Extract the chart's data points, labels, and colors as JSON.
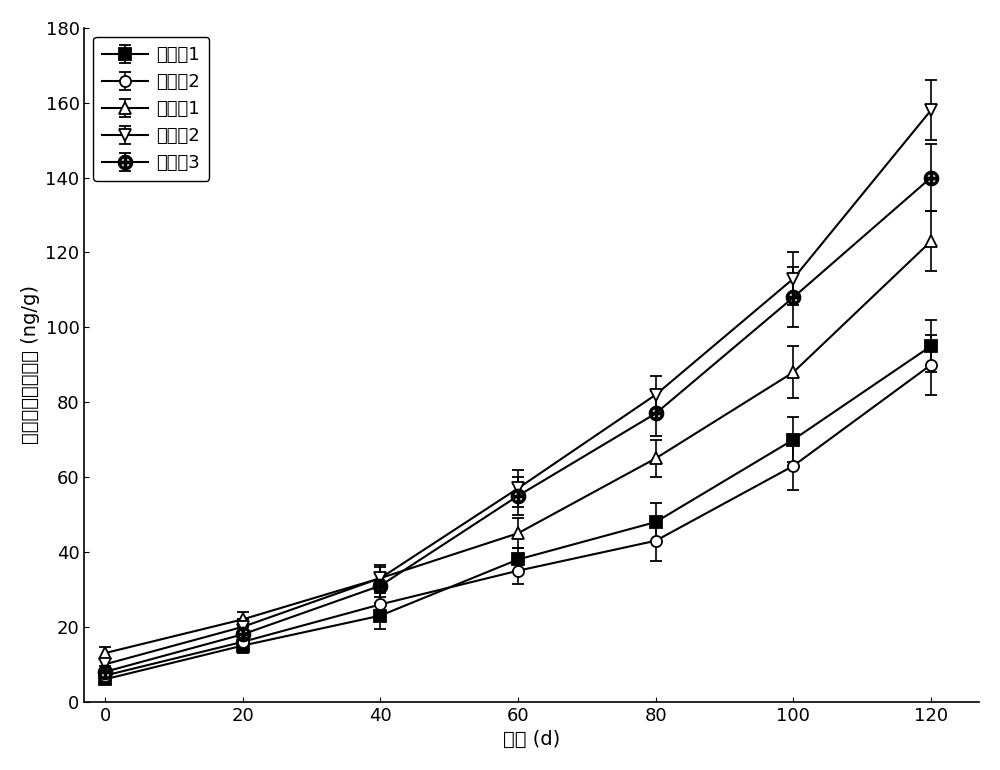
{
  "x": [
    0,
    20,
    40,
    60,
    80,
    100,
    120
  ],
  "series": [
    {
      "label": "实施处1",
      "y": [
        6,
        15,
        23,
        38,
        48,
        70,
        95
      ],
      "yerr": [
        1.0,
        2.0,
        3.5,
        3.0,
        5.0,
        6.0,
        7.0
      ],
      "marker": "s",
      "markerfacecolor": "black",
      "markeredgecolor": "black",
      "color": "black",
      "markersize": 8
    },
    {
      "label": "实施处2",
      "y": [
        7,
        16,
        26,
        35,
        43,
        63,
        90
      ],
      "yerr": [
        1.0,
        2.0,
        3.0,
        3.5,
        5.5,
        6.5,
        8.0
      ],
      "marker": "o",
      "markerfacecolor": "white",
      "markeredgecolor": "black",
      "color": "black",
      "markersize": 8
    },
    {
      "label": "对比处1",
      "y": [
        13,
        22,
        33,
        45,
        65,
        88,
        123
      ],
      "yerr": [
        1.5,
        2.0,
        3.5,
        4.0,
        5.0,
        7.0,
        8.0
      ],
      "marker": "^",
      "markerfacecolor": "white",
      "markeredgecolor": "black",
      "color": "black",
      "markersize": 9
    },
    {
      "label": "对比处2",
      "y": [
        10,
        20,
        33,
        57,
        82,
        113,
        158
      ],
      "yerr": [
        1.5,
        2.0,
        3.0,
        5.0,
        5.0,
        7.0,
        8.0
      ],
      "marker": "v",
      "markerfacecolor": "white",
      "markeredgecolor": "black",
      "color": "black",
      "markersize": 9
    },
    {
      "label": "对比处3",
      "y": [
        8,
        18,
        31,
        55,
        77,
        108,
        140
      ],
      "yerr": [
        1.5,
        2.0,
        3.0,
        5.0,
        6.0,
        8.0,
        9.0
      ],
      "marker": "$\\oplus$",
      "markerfacecolor": "black",
      "markeredgecolor": "black",
      "color": "black",
      "markersize": 10
    }
  ],
  "xlabel": "时间 (d)",
  "ylabel": "脂质过氧化物含量 (ng/g)",
  "ylim": [
    0,
    180
  ],
  "yticks": [
    0,
    20,
    40,
    60,
    80,
    100,
    120,
    140,
    160,
    180
  ],
  "xticks": [
    0,
    20,
    40,
    60,
    80,
    100,
    120
  ],
  "legend_loc": "upper left",
  "font_size": 14,
  "axis_font_size": 14,
  "tick_font_size": 13,
  "background_color": "white",
  "linewidth": 1.5
}
